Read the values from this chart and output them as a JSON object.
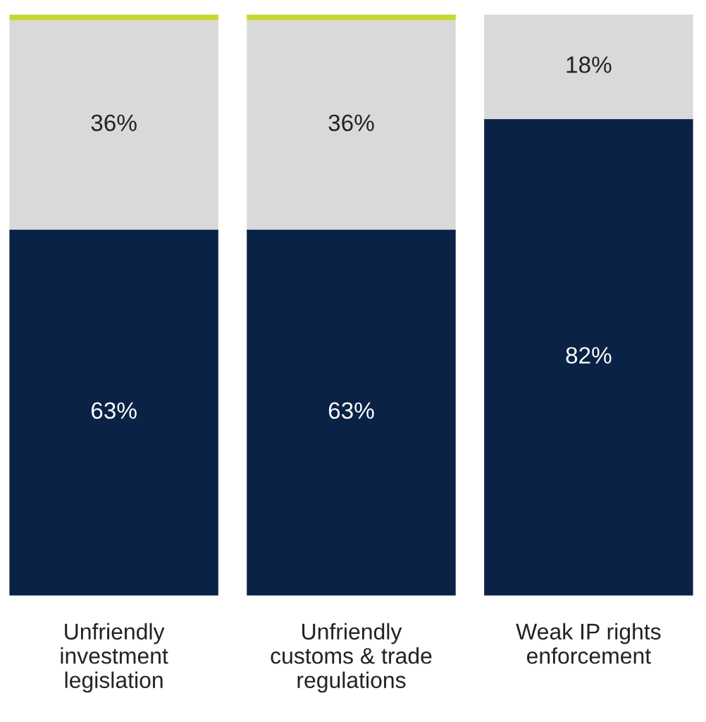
{
  "chart_data": {
    "type": "bar",
    "stacked": true,
    "categories": [
      "Unfriendly\ninvestment\nlegislation",
      "Unfriendly\ncustoms & trade\nregulations",
      "Weak IP rights\nenforcement"
    ],
    "series": [
      {
        "color": "#0a2245",
        "values": [
          63,
          63,
          82
        ],
        "value_labels": [
          "63%",
          "63%",
          "82%"
        ]
      },
      {
        "color": "#d9d9d9",
        "values": [
          36,
          36,
          18
        ],
        "value_labels": [
          "36%",
          "36%",
          "18%"
        ]
      },
      {
        "color": "#c8d630",
        "values": [
          1,
          1,
          null
        ],
        "value_labels": [
          null,
          null,
          null
        ]
      }
    ],
    "legend": false,
    "grid": false
  }
}
